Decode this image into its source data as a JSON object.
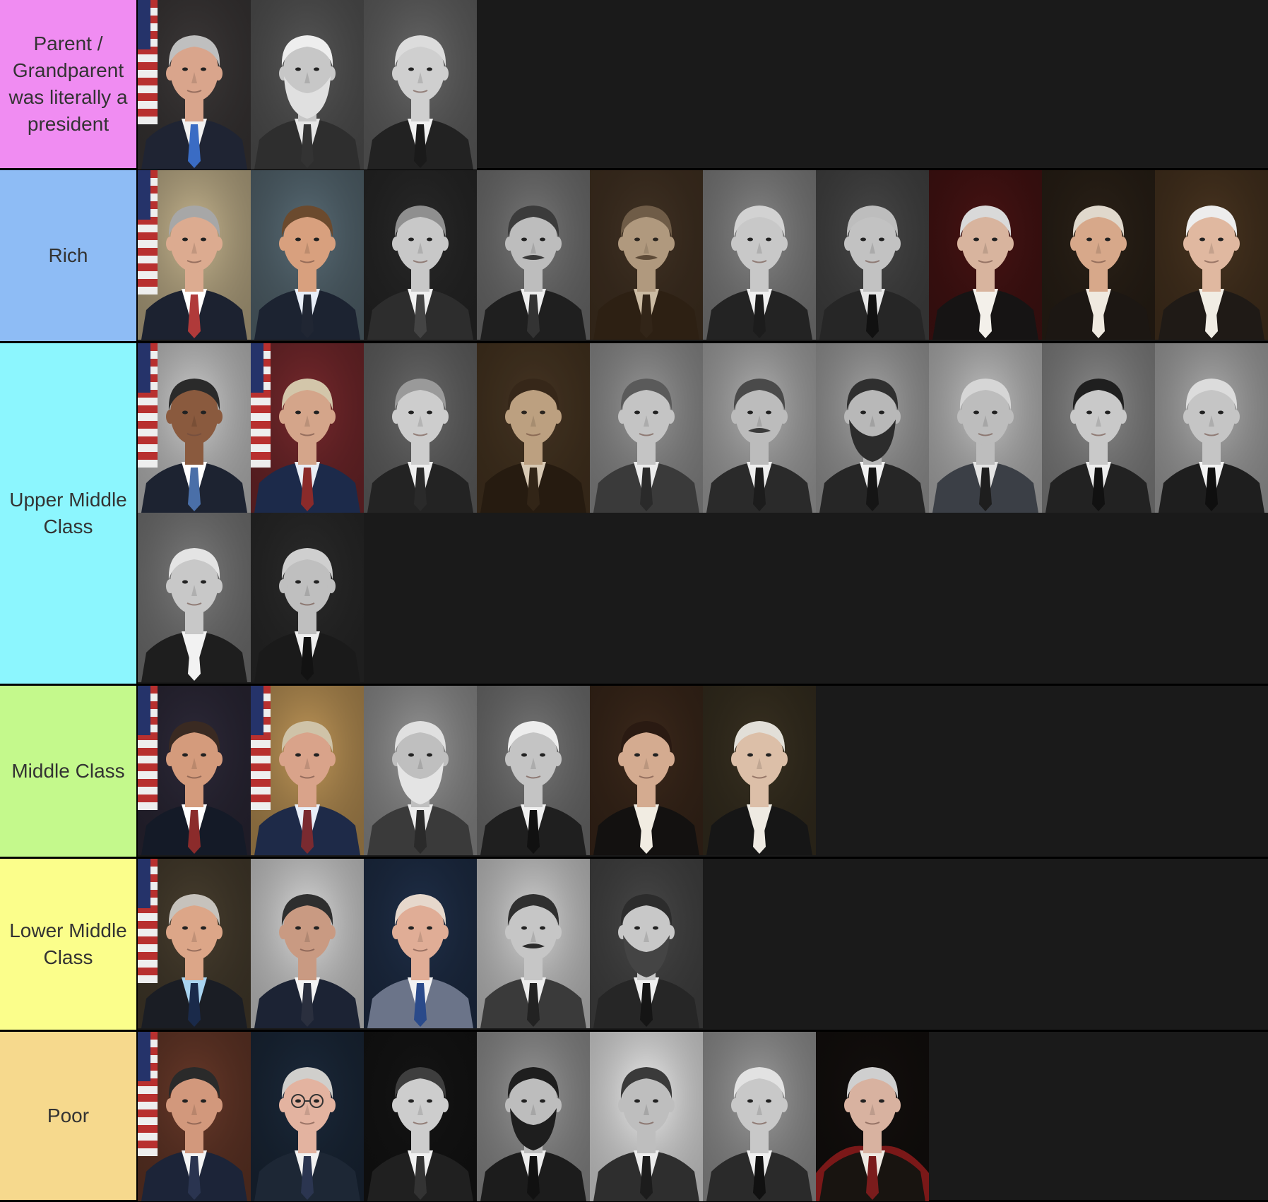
{
  "tiers": [
    {
      "label": "Parent / Grandparent was literally a president",
      "color": "#f08cf2",
      "items": [
        {
          "tone": "color",
          "bg": "#3e3a3a",
          "skin": "#d9a58c",
          "hair": "#bfbfbf",
          "coat": "#1f2433",
          "shirt": "#f1f1f1",
          "tie": "#3a6cc4",
          "flag": true
        },
        {
          "tone": "bw",
          "bg": "#5a5a5a",
          "skin": "#c7c7c7",
          "hair": "#eeeeee",
          "coat": "#2e2e2e",
          "shirt": "#e6e6e6",
          "tie": "#333333",
          "beard": "#e0e0e0"
        },
        {
          "tone": "bw",
          "bg": "#6a6a6a",
          "skin": "#cfcfcf",
          "hair": "#dcdcdc",
          "coat": "#222222",
          "shirt": "#f1f1f1",
          "tie": "#1a1a1a"
        }
      ]
    },
    {
      "label": "Rich",
      "color": "#8ebcf5",
      "items": [
        {
          "tone": "color",
          "bg": "#c9b891",
          "skin": "#dcab90",
          "hair": "#a7a7a7",
          "coat": "#1c2230",
          "shirt": "#ffffff",
          "tie": "#b03a3a",
          "flag": true
        },
        {
          "tone": "color",
          "bg": "#5b6e78",
          "skin": "#d8a07e",
          "hair": "#6b4a2e",
          "coat": "#1c2331",
          "shirt": "#e8eef8",
          "tie": "#202633"
        },
        {
          "tone": "bw",
          "bg": "#2a2a2a",
          "skin": "#c8c8c8",
          "hair": "#8f8f8f",
          "coat": "#2d2d2d",
          "shirt": "#f1f1f1",
          "tie": "#444444"
        },
        {
          "tone": "bw",
          "bg": "#7a7a7a",
          "skin": "#bdbdbd",
          "hair": "#3b3b3b",
          "coat": "#1f1f1f",
          "shirt": "#eeeeee",
          "tie": "#333333",
          "mustache": "#3a3a3a"
        },
        {
          "tone": "sepia",
          "bg": "#3a3027",
          "skin": "#b9a58e",
          "hair": "#6f604f",
          "coat": "#241c14",
          "shirt": "#d8ccb8",
          "tie": "#2a211a",
          "mustache": "#5a4c3d"
        },
        {
          "tone": "bw",
          "bg": "#8a8a8a",
          "skin": "#c8c8c8",
          "hair": "#d2d2d2",
          "coat": "#232323",
          "shirt": "#f0f0f0",
          "tie": "#1c1c1c"
        },
        {
          "tone": "bw",
          "bg": "#4a4a4a",
          "skin": "#c2c2c2",
          "hair": "#bdbdbd",
          "coat": "#262626",
          "shirt": "#e8e8e8",
          "tie": "#111111"
        },
        {
          "tone": "color",
          "bg": "#4a1414",
          "skin": "#d8b49e",
          "hair": "#d9d9d9",
          "coat": "#161414",
          "shirt": "#f3f0ea",
          "tie": "#f3f0ea"
        },
        {
          "tone": "color",
          "bg": "#2c2218",
          "skin": "#d7a88a",
          "hair": "#e0d8cc",
          "coat": "#1c1713",
          "shirt": "#efe9df",
          "tie": "#efe9df"
        },
        {
          "tone": "color",
          "bg": "#4b3621",
          "skin": "#e0b8a0",
          "hair": "#ededed",
          "coat": "#1f1a16",
          "shirt": "#f1ede4",
          "tie": "#f1ede4"
        }
      ]
    },
    {
      "label": "Upper Middle Class",
      "color": "#8cf6fe",
      "items": [
        {
          "tone": "color",
          "bg": "#cfcfcf",
          "skin": "#8a5a3e",
          "hair": "#2a2a2a",
          "coat": "#1d2331",
          "shirt": "#ffffff",
          "tie": "#4a6fa8",
          "flag": true
        },
        {
          "tone": "color",
          "bg": "#7a2a2e",
          "skin": "#d4a58a",
          "hair": "#d3c6aa",
          "coat": "#1c2a4a",
          "shirt": "#e9eef6",
          "tie": "#8a2a2a",
          "flag": true
        },
        {
          "tone": "bw",
          "bg": "#6c6c6c",
          "skin": "#cdcdcd",
          "hair": "#9a9a9a",
          "coat": "#232323",
          "shirt": "#efefef",
          "tie": "#2a2a2a"
        },
        {
          "tone": "sepia",
          "bg": "#403426",
          "skin": "#c6ad90",
          "hair": "#2e241b",
          "coat": "#1c1610",
          "shirt": "#e6dccb",
          "tie": "#2a2119"
        },
        {
          "tone": "bw",
          "bg": "#9a9a9a",
          "skin": "#c4c4c4",
          "hair": "#5a5a5a",
          "coat": "#3a3a3a",
          "shirt": "#ececec",
          "tie": "#2a2a2a"
        },
        {
          "tone": "bw",
          "bg": "#b3b3b3",
          "skin": "#bcbcbc",
          "hair": "#4a4a4a",
          "coat": "#2a2a2a",
          "shirt": "#eeeeee",
          "tie": "#1c1c1c",
          "mustache": "#3a3a3a"
        },
        {
          "tone": "bw",
          "bg": "#a8a8a8",
          "skin": "#b8b8b8",
          "hair": "#2f2f2f",
          "coat": "#262626",
          "shirt": "#f0f0f0",
          "tie": "#151515",
          "beard": "#2c2c2c"
        },
        {
          "tone": "bw",
          "bg": "#c4c4c4",
          "skin": "#bdbdbd",
          "hair": "#d6d6d6",
          "coat": "#3b3f46",
          "shirt": "#e4e4e4",
          "tie": "#1e1e1e"
        },
        {
          "tone": "bw",
          "bg": "#8e8e8e",
          "skin": "#c9c9c9",
          "hair": "#1f1f1f",
          "coat": "#222222",
          "shirt": "#ededed",
          "tie": "#111111"
        },
        {
          "tone": "bw",
          "bg": "#b0b0b0",
          "skin": "#c5c5c5",
          "hair": "#dcdcdc",
          "coat": "#1e1e1e",
          "shirt": "#f3f3f3",
          "tie": "#0f0f0f"
        },
        {
          "tone": "bw",
          "bg": "#7f7f7f",
          "skin": "#c8c8c8",
          "hair": "#e4e4e4",
          "coat": "#1e1e1e",
          "shirt": "#f2f2f2",
          "tie": "#f2f2f2"
        },
        {
          "tone": "bw",
          "bg": "#2c2c2c",
          "skin": "#bfbfbf",
          "hair": "#cfcfcf",
          "coat": "#1a1a1a",
          "shirt": "#efefef",
          "tie": "#121212"
        }
      ]
    },
    {
      "label": "Middle Class",
      "color": "#c4f98c",
      "items": [
        {
          "tone": "color",
          "bg": "#2e2a3a",
          "skin": "#d49b7c",
          "hair": "#3a2a22",
          "coat": "#141a27",
          "shirt": "#ffffff",
          "tie": "#8b2b2b",
          "flag": true
        },
        {
          "tone": "color",
          "bg": "#c49a5a",
          "skin": "#d9a38a",
          "hair": "#cfc3a8",
          "coat": "#1e2a48",
          "shirt": "#e9eff9",
          "tie": "#7a2a30",
          "flag": true
        },
        {
          "tone": "bw",
          "bg": "#9a9a9a",
          "skin": "#bfbfbf",
          "hair": "#e0e0e0",
          "coat": "#3a3a3a",
          "shirt": "#ececec",
          "tie": "#2a2a2a",
          "beard": "#e4e4e4"
        },
        {
          "tone": "bw",
          "bg": "#7a7a7a",
          "skin": "#c4c4c4",
          "hair": "#ededed",
          "coat": "#1f1f1f",
          "shirt": "#f0f0f0",
          "tie": "#111111"
        },
        {
          "tone": "color",
          "bg": "#3e2a1c",
          "skin": "#d4ab90",
          "hair": "#2a1a12",
          "coat": "#131110",
          "shirt": "#f1ece2",
          "tie": "#f1ece2"
        },
        {
          "tone": "color",
          "bg": "#3a3222",
          "skin": "#dcbfa8",
          "hair": "#e2dfd8",
          "coat": "#161616",
          "shirt": "#eeeae2",
          "tie": "#eeeae2"
        }
      ]
    },
    {
      "label": "Lower Middle Class",
      "color": "#fbfe8b",
      "items": [
        {
          "tone": "color",
          "bg": "#4a4030",
          "skin": "#dca688",
          "hair": "#c6c2bc",
          "coat": "#1a1d24",
          "shirt": "#a9d4f0",
          "tie": "#1a2a4a",
          "flag": true
        },
        {
          "tone": "color",
          "bg": "#dedede",
          "skin": "#c99a82",
          "hair": "#2e2e2e",
          "coat": "#1c2334",
          "shirt": "#f4f4f4",
          "tie": "#2a2f3e"
        },
        {
          "tone": "color",
          "bg": "#20304a",
          "skin": "#e0ad96",
          "hair": "#e6d8cc",
          "coat": "#6b7489",
          "shirt": "#f2f2f2",
          "tie": "#2a4a8a"
        },
        {
          "tone": "bw",
          "bg": "#d7d7d7",
          "skin": "#c6c6c6",
          "hair": "#2f2f2f",
          "coat": "#3a3a3a",
          "shirt": "#ededed",
          "tie": "#222222",
          "mustache": "#2c2c2c"
        },
        {
          "tone": "bw",
          "bg": "#4a4a4a",
          "skin": "#c8c8c8",
          "hair": "#2c2c2c",
          "coat": "#262626",
          "shirt": "#f0f0f0",
          "tie": "#151515",
          "beard": "#444444"
        }
      ]
    },
    {
      "label": "Poor",
      "color": "#f6d98d",
      "items": [
        {
          "tone": "color",
          "bg": "#6a3a2a",
          "skin": "#d2987c",
          "hair": "#2a2a2a",
          "coat": "#1c2438",
          "shirt": "#f4f4f4",
          "tie": "#2a3450",
          "flag": true
        },
        {
          "tone": "color",
          "bg": "#1c2a3c",
          "skin": "#e3b3a0",
          "hair": "#d0cfcc",
          "coat": "#1d2735",
          "shirt": "#f1f1f1",
          "tie": "#2b3550",
          "glasses": true
        },
        {
          "tone": "bw",
          "bg": "#151515",
          "skin": "#cdcdcd",
          "hair": "#3e3e3e",
          "coat": "#202020",
          "shirt": "#f1f1f1",
          "tie": "#333333"
        },
        {
          "tone": "bw",
          "bg": "#9a9a9a",
          "skin": "#bdbdbd",
          "hair": "#1e1e1e",
          "coat": "#1c1c1c",
          "shirt": "#ececec",
          "tie": "#111111",
          "beard": "#1e1e1e"
        },
        {
          "tone": "bw",
          "bg": "#f0f0f0",
          "skin": "#bebebe",
          "hair": "#3a3a3a",
          "coat": "#2e2e2e",
          "shirt": "#ececec",
          "tie": "#1c1c1c"
        },
        {
          "tone": "bw",
          "bg": "#9f9f9f",
          "skin": "#c8c8c8",
          "hair": "#e2e2e2",
          "coat": "#2a2a2a",
          "shirt": "#f0f0f0",
          "tie": "#111111"
        },
        {
          "tone": "color",
          "bg": "#14100e",
          "skin": "#d8b2a0",
          "hair": "#cfcfcf",
          "coat": "#181410",
          "shirt": "#eee9e2",
          "tie": "#7a1c1c",
          "cape": "#7a1818"
        }
      ]
    }
  ]
}
